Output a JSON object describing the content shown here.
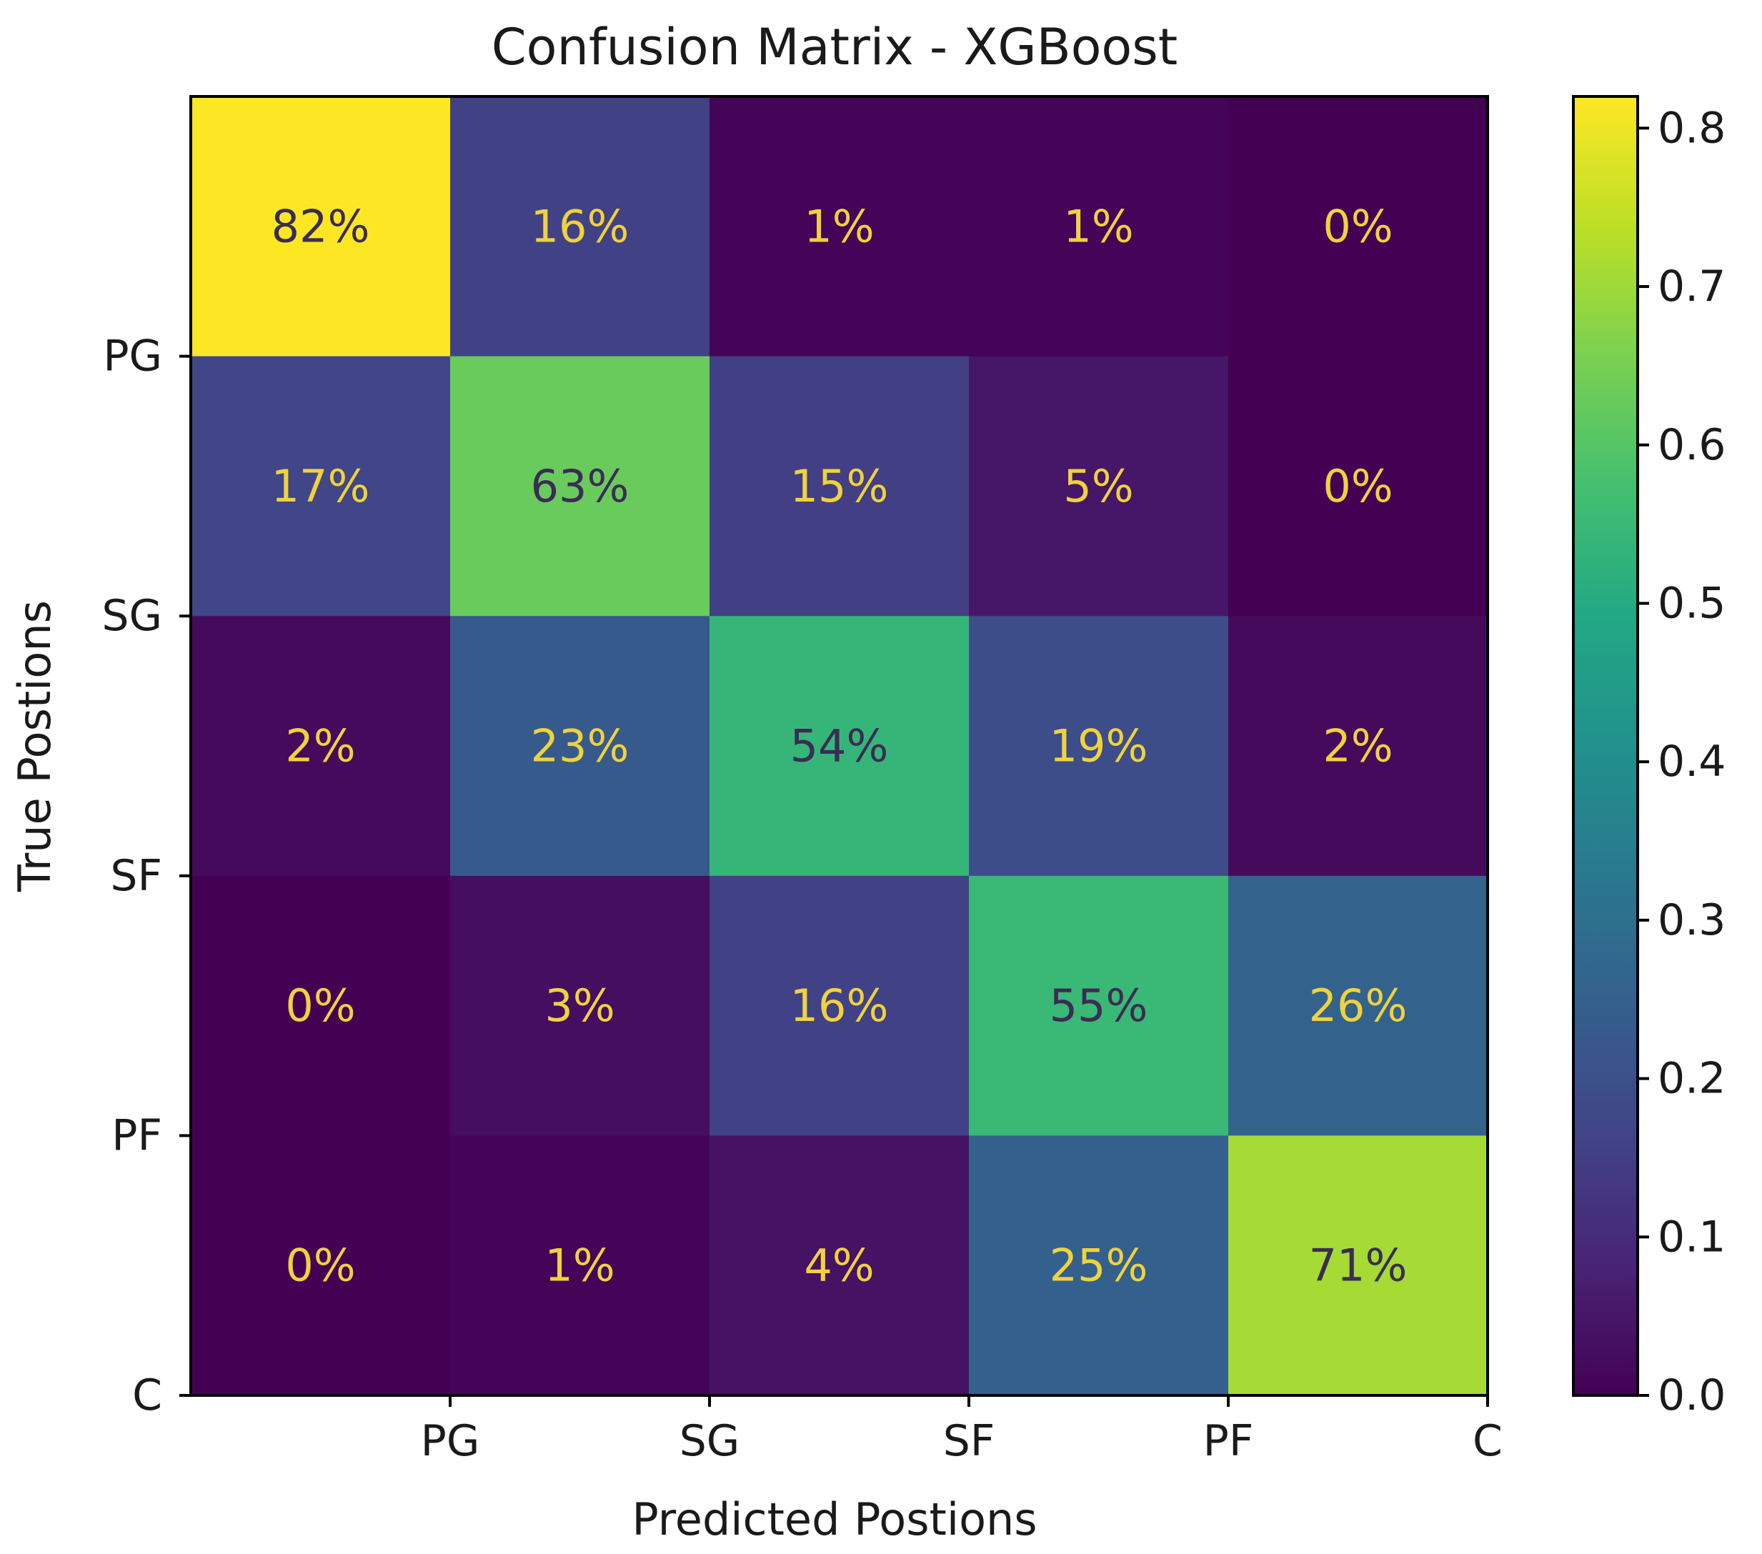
{
  "chart_data": {
    "type": "heatmap",
    "title": "Confusion Matrix - XGBoost",
    "xlabel": "Predicted Postions",
    "ylabel": "True Postions",
    "x_tick_labels": [
      "PG",
      "SG",
      "SF",
      "PF",
      "C"
    ],
    "y_tick_labels": [
      "PG",
      "SG",
      "SF",
      "PF",
      "C"
    ],
    "values": [
      [
        0.82,
        0.16,
        0.01,
        0.01,
        0.0
      ],
      [
        0.17,
        0.63,
        0.15,
        0.05,
        0.0
      ],
      [
        0.02,
        0.23,
        0.54,
        0.19,
        0.02
      ],
      [
        0.0,
        0.03,
        0.16,
        0.55,
        0.26
      ],
      [
        0.0,
        0.01,
        0.04,
        0.25,
        0.71
      ]
    ],
    "cell_labels": [
      [
        "82%",
        "16%",
        "1%",
        "1%",
        "0%"
      ],
      [
        "17%",
        "63%",
        "15%",
        "5%",
        "0%"
      ],
      [
        "2%",
        "23%",
        "54%",
        "19%",
        "2%"
      ],
      [
        "0%",
        "3%",
        "16%",
        "55%",
        "26%"
      ],
      [
        "0%",
        "1%",
        "4%",
        "25%",
        "71%"
      ]
    ],
    "colormap": "viridis",
    "colorbar": {
      "range": [
        0.0,
        0.82
      ],
      "ticks": [
        0.0,
        0.1,
        0.2,
        0.3,
        0.4,
        0.5,
        0.6,
        0.7,
        0.8
      ],
      "tick_labels": [
        "0.0",
        "0.1",
        "0.2",
        "0.3",
        "0.4",
        "0.5",
        "0.6",
        "0.7",
        "0.8"
      ]
    },
    "label_colors": {
      "on_dark": "#f0d23c",
      "on_light": "#3b2c55"
    }
  }
}
